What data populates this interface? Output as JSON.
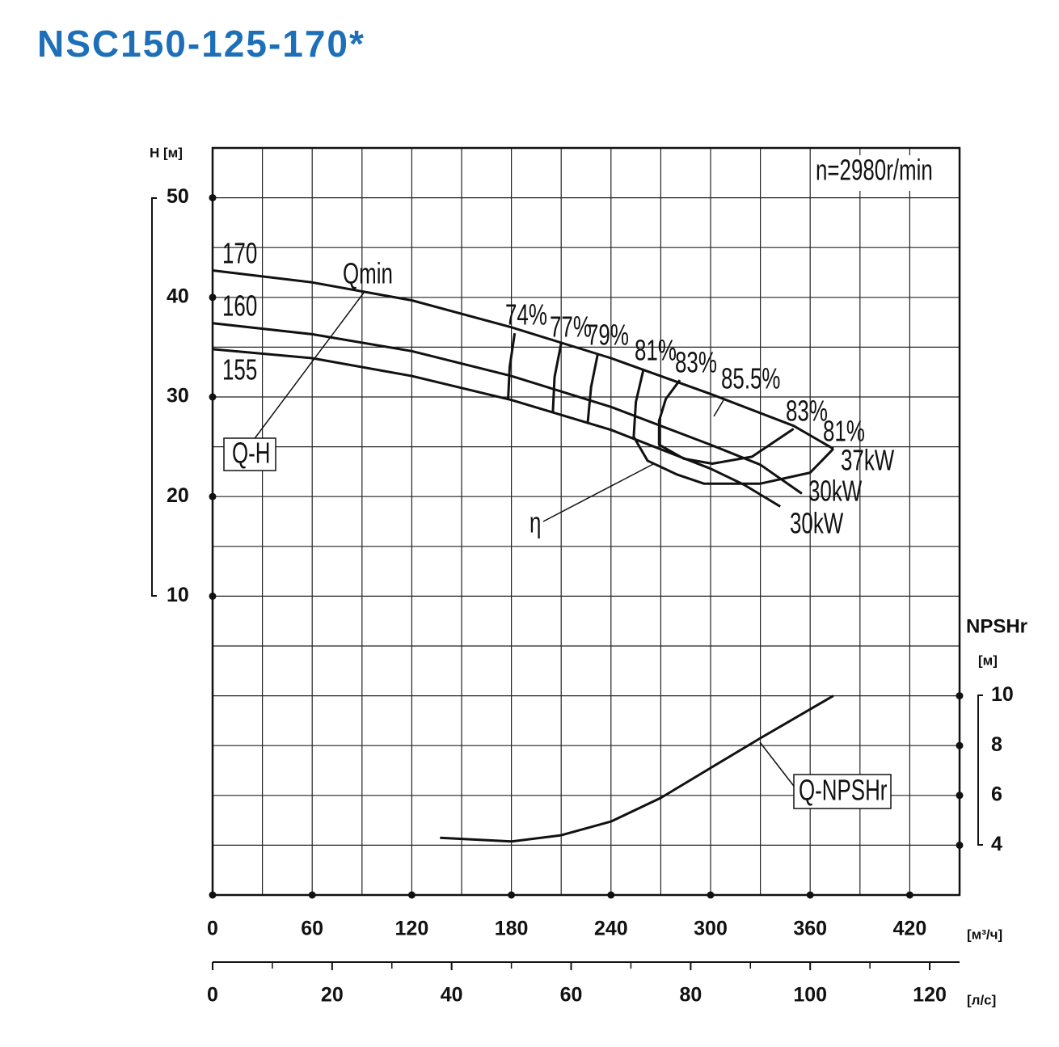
{
  "chart_data": {
    "type": "line",
    "title": "NSC150-125-170*",
    "speed_label": "n=2980r/min",
    "xlabel": "[м³/ч]",
    "x2label": "[л/с]",
    "ylabel": "H [м]",
    "y2label": "NPSHr",
    "y2unit": "[м]",
    "xlim": [
      0,
      450
    ],
    "xticks": [
      0,
      60,
      120,
      180,
      240,
      300,
      360,
      420
    ],
    "x2lim": [
      0,
      125
    ],
    "x2ticks": [
      0,
      20,
      40,
      60,
      80,
      100,
      120
    ],
    "ylim": [
      -20,
      55
    ],
    "yticks": [
      10,
      20,
      30,
      40,
      50
    ],
    "y2lim": [
      2,
      32
    ],
    "y2ticks": [
      4,
      6,
      8,
      10
    ],
    "grid": true,
    "color": "#111111",
    "title_color": "#1d6fb8",
    "series": [
      {
        "name": "170",
        "power": "37kW",
        "x": [
          0,
          60,
          120,
          180,
          240,
          300,
          350,
          374
        ],
        "values": [
          42.7,
          41.5,
          39.7,
          37.0,
          33.9,
          30.3,
          27.1,
          24.8
        ]
      },
      {
        "name": "160",
        "power": "30kW",
        "x": [
          0,
          60,
          120,
          180,
          240,
          300,
          330,
          355
        ],
        "values": [
          37.4,
          36.3,
          34.6,
          32.1,
          29.0,
          25.2,
          23.2,
          20.3
        ]
      },
      {
        "name": "155",
        "power": "30kW",
        "x": [
          0,
          60,
          120,
          180,
          240,
          300,
          320,
          342
        ],
        "values": [
          34.8,
          33.9,
          32.1,
          29.7,
          26.7,
          22.8,
          21.2,
          19.0
        ]
      }
    ],
    "efficiency": [
      {
        "name": "74%",
        "x": [
          182,
          179,
          178
        ],
        "values": [
          36.4,
          33.0,
          29.7
        ]
      },
      {
        "name": "77%",
        "x": [
          210,
          206,
          205
        ],
        "values": [
          35.4,
          32.0,
          28.5
        ]
      },
      {
        "name": "79%",
        "x": [
          232,
          228,
          226
        ],
        "values": [
          34.3,
          31.0,
          27.5
        ]
      },
      {
        "name": "81%",
        "x": [
          259.5,
          255,
          253.7,
          262,
          280,
          296,
          330,
          360,
          374
        ],
        "values": [
          32.7,
          29.5,
          26.0,
          23.6,
          22.2,
          21.3,
          21.3,
          22.4,
          24.8
        ]
      },
      {
        "name": "83%",
        "x": [
          281.5,
          273,
          269,
          269,
          284,
          301,
          325,
          350
        ],
        "values": [
          31.7,
          29.8,
          27.6,
          25.2,
          23.8,
          23.3,
          24.0,
          26.8
        ]
      }
    ],
    "efficiency_end_labels": [
      "83%",
      "81%"
    ],
    "npsh": {
      "name": "Q-NPSHr",
      "axis": "y2",
      "x": [
        137,
        180,
        210,
        240,
        270,
        300,
        330,
        374
      ],
      "values": [
        4.3,
        4.15,
        4.4,
        4.95,
        5.9,
        7.1,
        8.3,
        10.0
      ]
    },
    "annotations": [
      "Qmin",
      "Q-H",
      "η",
      "85.5%"
    ]
  }
}
